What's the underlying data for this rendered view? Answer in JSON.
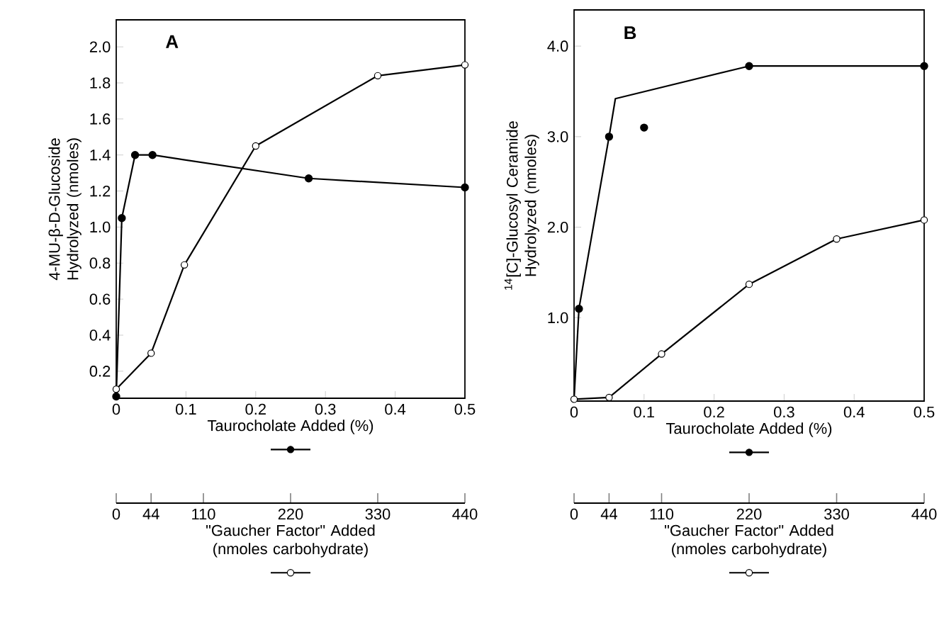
{
  "chart_data": [
    {
      "type": "line",
      "title": "A",
      "xlabel": "Taurocholate Added (%)",
      "x2label": "\"Gaucher Factor\" Added (nmoles carbohydrate)",
      "ylabel": "4-MU-β-D-Glucoside Hydrolyzed (nmoles)",
      "xlim": [
        0,
        0.5
      ],
      "xticks": [
        0,
        0.1,
        0.2,
        0.3,
        0.4,
        0.5
      ],
      "x2lim": [
        0,
        440
      ],
      "x2ticks": [
        0,
        44,
        110,
        220,
        330,
        440
      ],
      "ylim": [
        0.05,
        2.15
      ],
      "yticks": [
        {
          "value": 0.2,
          "label": "0.2"
        },
        {
          "value": 0.4,
          "label": "0.4"
        },
        {
          "value": 0.6,
          "label": "0.6"
        },
        {
          "value": 0.8,
          "label": "0.8"
        },
        {
          "value": 1.0,
          "label": "1.0"
        },
        {
          "value": 1.2,
          "label": "1.2"
        },
        {
          "value": 1.4,
          "label": "1.4"
        },
        {
          "value": 1.6,
          "label": "1.6"
        },
        {
          "value": 1.8,
          "label": "1.8"
        },
        {
          "value": 2.0,
          "label": "2.0"
        }
      ],
      "marker": "circle",
      "series": [
        {
          "color": "#000000",
          "x": [
            0,
            0.008,
            0.027,
            0.052,
            0.276,
            0.5
          ],
          "values": [
            0.06,
            1.05,
            1.4,
            1.4,
            1.27,
            1.22
          ]
        },
        {
          "color": "#000000",
          "axis": "x2",
          "x": [
            0,
            44,
            86,
            176,
            330,
            440
          ],
          "values": [
            0.1,
            0.3,
            0.79,
            1.45,
            1.84,
            1.9
          ]
        }
      ]
    },
    {
      "type": "line",
      "title": "B",
      "xlabel": "Taurocholate Added (%)",
      "x2label": "\"Gaucher Factor\" Added (nmoles carbohydrate)",
      "ylabel": "$^{14}$[C]-Glucosyl Ceramide Hydrolyzed (nmoles)",
      "xlim": [
        0,
        0.5
      ],
      "xticks": [
        0,
        0.1,
        0.2,
        0.3,
        0.4,
        0.5
      ],
      "x2lim": [
        0,
        440
      ],
      "x2ticks": [
        0,
        44,
        110,
        220,
        330,
        440
      ],
      "ylim": [
        0.08,
        4.4
      ],
      "yticks": [
        {
          "value": 1.0,
          "label": "1.0"
        },
        {
          "value": 2.0,
          "label": "2.0"
        },
        {
          "value": 3.0,
          "label": "3.0"
        },
        {
          "value": 4.0,
          "label": "4.0"
        }
      ],
      "marker": "circle",
      "series": [
        {
          "color": "#000000",
          "marker": "none",
          "x": [
            0,
            0.007,
            0.05,
            0.059,
            0.25,
            0.5
          ],
          "values": [
            0.1,
            1.1,
            3.0,
            3.42,
            3.78,
            3.78
          ]
        },
        {
          "color": "#000000",
          "type": "scatter",
          "x": [
            0.007,
            0.05,
            0.1,
            0.25,
            0.5
          ],
          "values": [
            1.1,
            3.0,
            3.1,
            3.78,
            3.78
          ]
        },
        {
          "color": "#000000",
          "axis": "x2",
          "x": [
            0,
            44,
            110,
            220,
            330,
            440
          ],
          "values": [
            0.1,
            0.12,
            0.6,
            1.37,
            1.87,
            2.08
          ]
        }
      ]
    }
  ]
}
